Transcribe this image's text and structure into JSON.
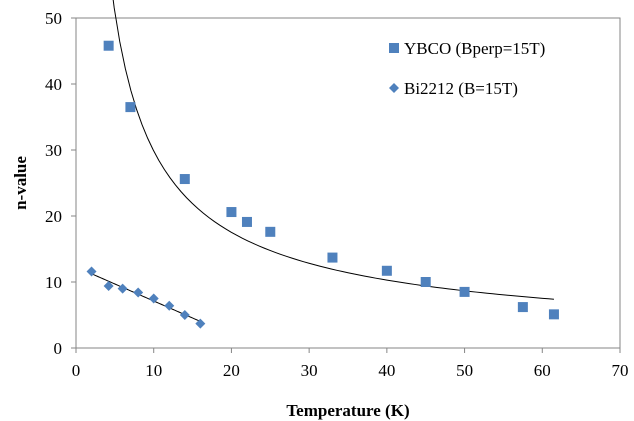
{
  "chart_data": {
    "type": "scatter",
    "title": "",
    "xlabel": "Temperature (K)",
    "ylabel": "n-value",
    "xlim": [
      0,
      70
    ],
    "ylim": [
      0,
      50
    ],
    "xticks": [
      0,
      10,
      20,
      30,
      40,
      50,
      60,
      70
    ],
    "yticks": [
      0,
      10,
      20,
      30,
      40,
      50
    ],
    "grid": false,
    "legend_position": "top-right",
    "series": [
      {
        "name": "YBCO (Bperp=15T)",
        "marker": "square",
        "color": "#4F81BD",
        "x": [
          4.2,
          7,
          14,
          20,
          22,
          25,
          33,
          40,
          45,
          50,
          57.5,
          61.5
        ],
        "y": [
          45.8,
          36.5,
          25.6,
          20.6,
          19.1,
          17.6,
          13.7,
          11.7,
          10.0,
          8.5,
          6.2,
          5.1
        ],
        "trendline": "power"
      },
      {
        "name": "Bi2212 (B=15T)",
        "marker": "diamond",
        "color": "#4F81BD",
        "x": [
          2,
          4.2,
          6,
          8,
          10,
          12,
          14,
          16
        ],
        "y": [
          11.6,
          9.4,
          9.0,
          8.4,
          7.5,
          6.4,
          5.0,
          3.7
        ],
        "trendline": "linear"
      }
    ]
  }
}
